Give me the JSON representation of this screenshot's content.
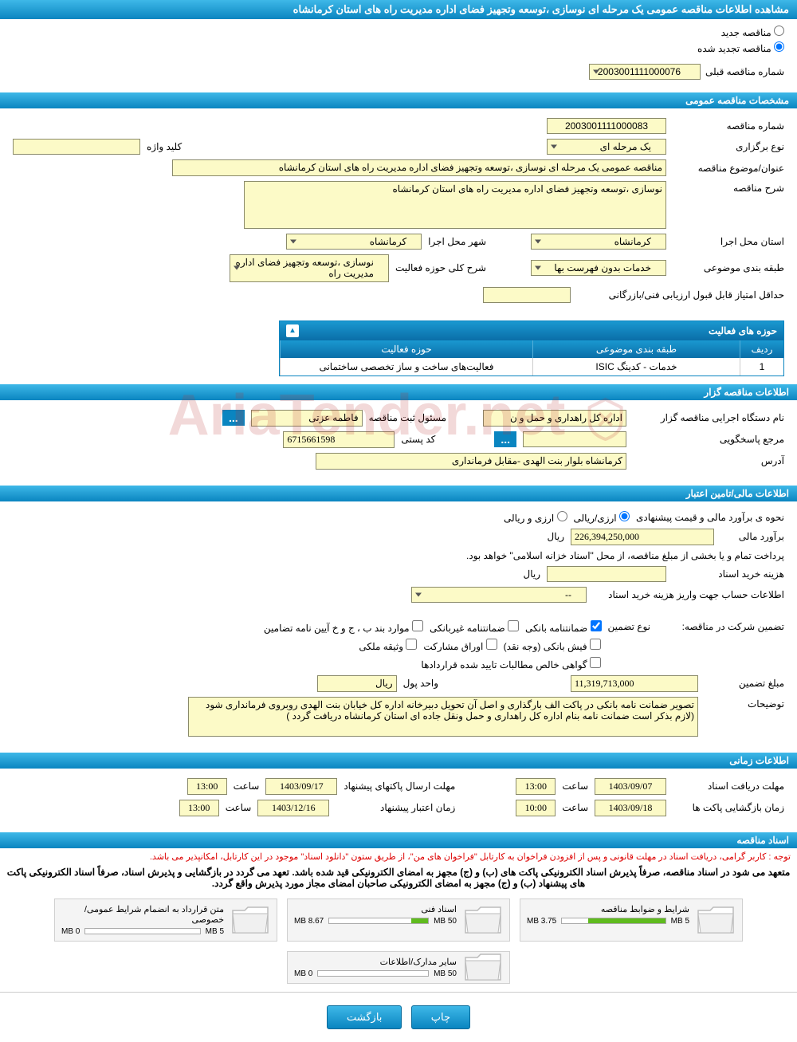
{
  "page_title": "مشاهده اطلاعات مناقصه عمومی یک مرحله ای نوسازی ،توسعه وتجهیز فضای اداره مدیریت راه های استان کرمانشاه",
  "radio": {
    "new_tender": "مناقصه جدید",
    "renewed_tender": "مناقصه تجدید شده"
  },
  "prev_tender": {
    "label": "شماره مناقصه قبلی",
    "value": "2003001111000076"
  },
  "sections": {
    "general": "مشخصات مناقصه عمومی",
    "organizer": "اطلاعات مناقصه گزار",
    "financial": "اطلاعات مالی/تامین اعتبار",
    "schedule": "اطلاعات زمانی",
    "documents": "اسناد مناقصه"
  },
  "general": {
    "tender_no_lbl": "شماره مناقصه",
    "tender_no": "2003001111000083",
    "holding_type_lbl": "نوع برگزاری",
    "holding_type": "یک مرحله ای",
    "keyword_lbl": "کلید واژه",
    "keyword": "",
    "title_lbl": "عنوان/موضوع مناقصه",
    "title": "مناقصه عمومی یک مرحله ای نوسازی ،توسعه وتجهیز فضای اداره مدیریت راه های استان کرمانشاه",
    "desc_lbl": "شرح مناقصه",
    "desc": "نوسازی ،توسعه وتجهیز فضای اداره مدیریت راه های استان کرمانشاه",
    "province_lbl": "استان محل اجرا",
    "province": "کرمانشاه",
    "city_lbl": "شهر محل اجرا",
    "city": "کرمانشاه",
    "category_lbl": "طبقه بندی موضوعی",
    "category": "خدمات بدون فهرست بها",
    "activity_scope_lbl": "شرح کلی حوزه فعالیت",
    "activity_scope": "نوسازی ،توسعه وتجهیز فضای اداره مدیریت راه",
    "min_score_lbl": "حداقل امتیاز قابل قبول ارزیابی فنی/بازرگانی",
    "min_score": ""
  },
  "activity_table": {
    "caption": "حوزه های فعالیت",
    "cols": {
      "row": "ردیف",
      "category": "طبقه بندی موضوعی",
      "scope": "حوزه فعالیت"
    },
    "col_widths": {
      "row": "55px",
      "category": "260px",
      "scope": "auto"
    },
    "rows": [
      {
        "row": "1",
        "category": "خدمات - کدینگ ISIC",
        "scope": "فعالیت‌های ساخت و ساز تخصصی ساختمانی"
      }
    ]
  },
  "organizer": {
    "agency_lbl": "نام دستگاه اجرایی مناقصه گزار",
    "agency": "اداره کل راهداری و حمل و ن",
    "registrar_lbl": "مسئول ثبت مناقصه",
    "registrar": "فاطمه  عزتی",
    "responder_lbl": "مرجع پاسخگویی",
    "responder": "",
    "postal_lbl": "کد پستی",
    "postal": "6715661598",
    "address_lbl": "آدرس",
    "address": "کرمانشاه بلوار بنت الهدی -مقابل فرمانداری"
  },
  "financial": {
    "estimate_method_lbl": "نحوه ی برآورد مالی و قیمت پیشنهادی",
    "radio_rial": "ارزی/ریالی",
    "radio_currency": "ارزی و ریالی",
    "estimate_lbl": "برآورد مالی",
    "estimate": "226,394,250,000",
    "unit_rial": "ریال",
    "treasury_note": "پرداخت تمام و یا بخشی از مبلغ مناقصه، از محل \"اسناد خزانه اسلامی\" خواهد بود.",
    "doc_fee_lbl": "هزینه خرید اسناد",
    "doc_fee": "",
    "account_info_lbl": "اطلاعات حساب جهت واریز هزینه خرید اسناد",
    "account_info": "--",
    "guarantee_header": "تضمین شرکت در مناقصه:",
    "guarantee_type_lbl": "نوع تضمین",
    "chk_bank_guarantee": "ضمانتنامه بانکی",
    "chk_nonbank_guarantee": "ضمانتنامه غیربانکی",
    "chk_bylaw": "موارد بند ب ، ج و خ آیین نامه تضامین",
    "chk_bank_receipt": "فیش بانکی (وجه نقد)",
    "chk_bonds": "اوراق مشارکت",
    "chk_property": "وثیقه ملکی",
    "chk_certificate": "گواهی خالص مطالبات تایید شده قراردادها",
    "guarantee_amount_lbl": "مبلغ تضمین",
    "guarantee_amount": "11,319,713,000",
    "currency_unit_lbl": "واحد پول",
    "currency_unit": "ریال",
    "notes_lbl": "توضیحات",
    "notes": "تصویر ضمانت نامه بانکی در پاکت الف بارگذاری و اصل آن تحویل دبیرخانه اداره کل خیابان بنت الهدی روبروی فرمانداری شود  (لازم بذکر است ضمانت نامه بنام اداره کل راهداری و حمل ونقل جاده ای استان کرمانشاه دریافت گردد )"
  },
  "schedule": {
    "doc_deadline_lbl": "مهلت دریافت اسناد",
    "doc_deadline_date": "1403/09/07",
    "time_lbl": "ساعت",
    "doc_deadline_time": "13:00",
    "bid_deadline_lbl": "مهلت ارسال پاکتهای پیشنهاد",
    "bid_deadline_date": "1403/09/17",
    "bid_deadline_time": "13:00",
    "opening_lbl": "زمان بازگشایی پاکت ها",
    "opening_date": "1403/09/18",
    "opening_time": "10:00",
    "validity_lbl": "زمان اعتبار پیشنهاد",
    "validity_date": "1403/12/16",
    "validity_time": "13:00"
  },
  "documents": {
    "red_note": "توجه : کاربر گرامی، دریافت اسناد در مهلت قانونی و پس از افزودن فراخوان به کارتابل \"فراخوان های من\"، از طریق ستون \"دانلود اسناد\" موجود در این کارتابل، امکانپذیر می باشد.",
    "bold_note1": "متعهد می شود در اسناد مناقصه، صرفاً پذیرش اسناد الکترونیکی پاکت های (ب) و (ج) مجهز به امضای الکترونیکی قید شده باشد. تعهد می گردد در بازگشایی و پذیرش اسناد، صرفاً اسناد الکترونیکی پاکت های پیشنهاد (ب) و (ج) مجهز به امضای الکترونیکی صاحبان امضای مجاز مورد پذیرش واقع گردد.",
    "files": [
      {
        "name": "شرایط و ضوابط مناقصه",
        "used": "3.75 MB",
        "cap": "5 MB",
        "pct": 75
      },
      {
        "name": "اسناد فنی",
        "used": "8.67 MB",
        "cap": "50 MB",
        "pct": 17
      },
      {
        "name": "متن قرارداد به انضمام شرایط عمومی/خصوصی",
        "used": "0 MB",
        "cap": "5 MB",
        "pct": 0
      },
      {
        "name": "سایر مدارک/اطلاعات",
        "used": "0 MB",
        "cap": "50 MB",
        "pct": 0
      }
    ]
  },
  "buttons": {
    "print": "چاپ",
    "back": "بازگشت"
  },
  "watermark": "AriaTender.net",
  "colors": {
    "header_grad_top": "#3eb8e8",
    "header_grad_bot": "#0a85c0",
    "field_bg": "#fcfac7",
    "field_border": "#8a8a6a",
    "progress_fill": "#5fbb1e",
    "red": "#d00000"
  }
}
